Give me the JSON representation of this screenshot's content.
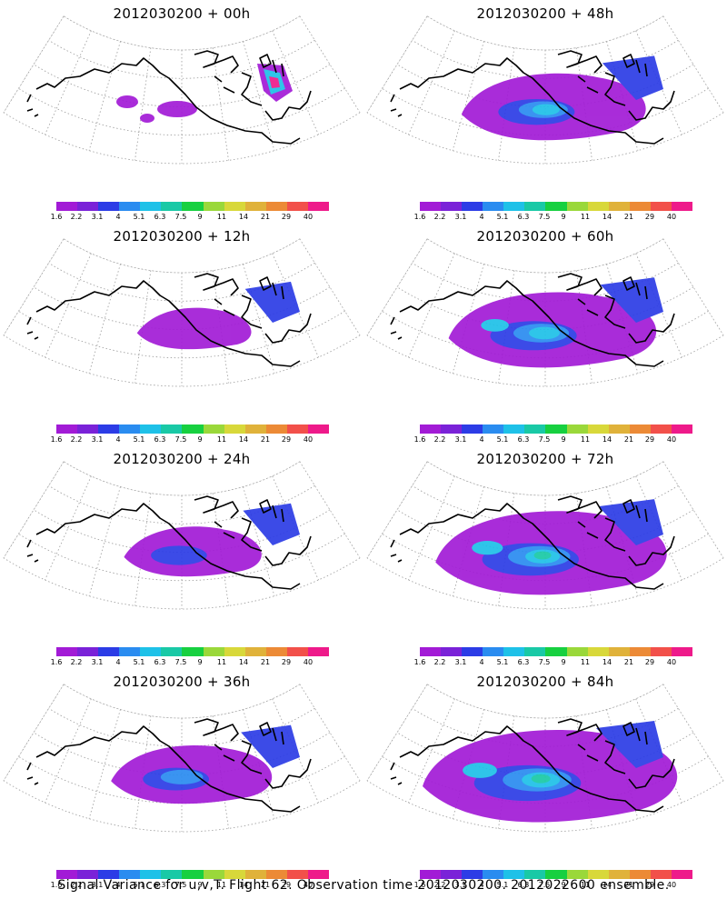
{
  "panels": [
    {
      "title": "2012030200 + 00h",
      "intensity": 0
    },
    {
      "title": "2012030200 + 48h",
      "intensity": 4
    },
    {
      "title": "2012030200 + 12h",
      "intensity": 1
    },
    {
      "title": "2012030200 + 60h",
      "intensity": 5
    },
    {
      "title": "2012030200 + 24h",
      "intensity": 2
    },
    {
      "title": "2012030200 + 72h",
      "intensity": 6
    },
    {
      "title": "2012030200 + 36h",
      "intensity": 3
    },
    {
      "title": "2012030200 + 84h",
      "intensity": 7
    }
  ],
  "colorbar": {
    "labels": [
      "1.6",
      "2.2",
      "3.1",
      "4",
      "5.1",
      "6.3",
      "7.5",
      "9",
      "11",
      "14",
      "21",
      "29",
      "40"
    ],
    "colors": [
      "#a21bd6",
      "#7a22d8",
      "#2c3ce6",
      "#2a8cf0",
      "#1ec1e8",
      "#19c9a6",
      "#17d040",
      "#9ad83a",
      "#d8d83a",
      "#e0b23a",
      "#ec8a36",
      "#f2504a",
      "#ee1a8a"
    ]
  },
  "footer": "Signal Variance for u,v,T. Flight 62. Observation time 2012030200. 2012022600 ensemble."
}
